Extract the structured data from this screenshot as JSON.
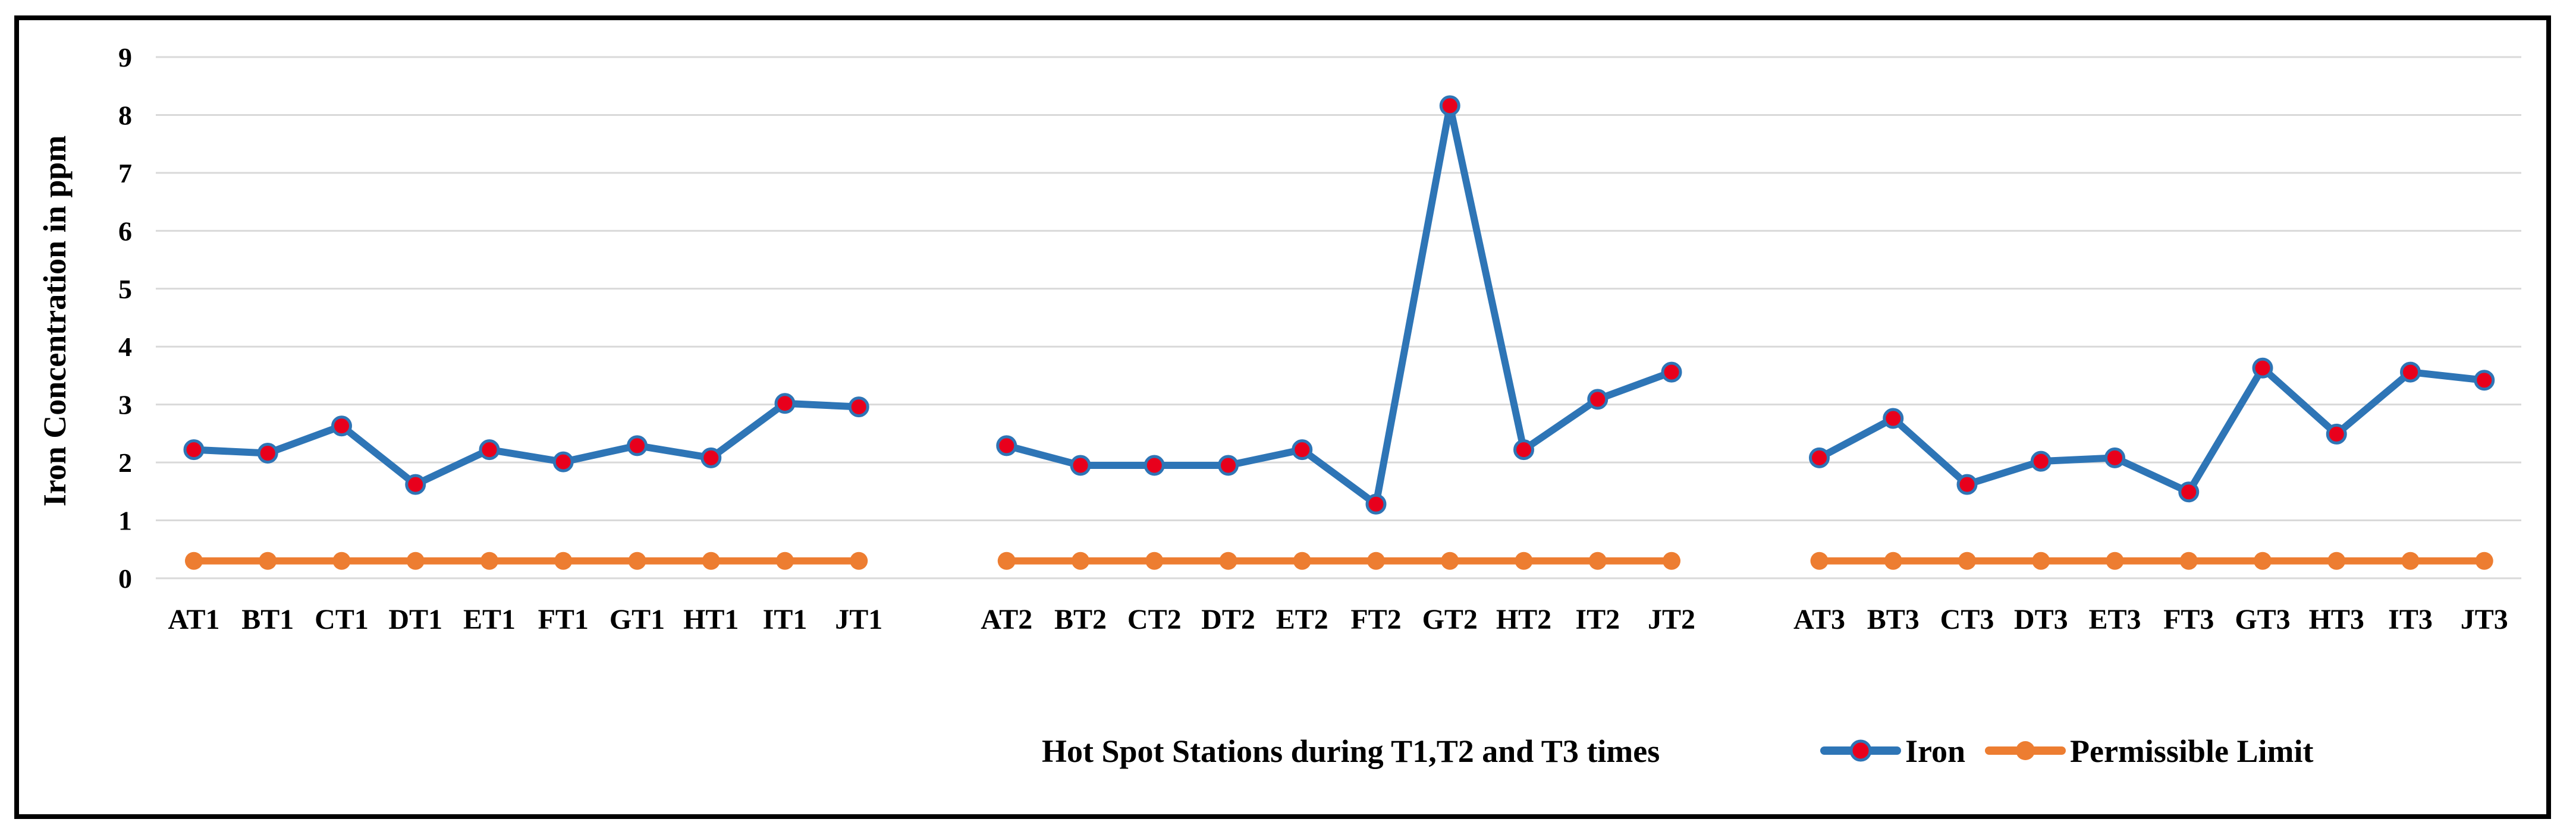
{
  "chart_data": {
    "type": "line",
    "xlabel": "Hot Spot Stations during T1,T2 and T3 times",
    "ylabel": "Iron Concentration in ppm",
    "ylim": [
      0,
      9
    ],
    "yticks": [
      "0",
      "1",
      "2",
      "3",
      "4",
      "5",
      "6",
      "7",
      "8",
      "9"
    ],
    "grid": "horizontal",
    "legend_position": "bottom-right",
    "groups": [
      {
        "categories": [
          "AT1",
          "BT1",
          "CT1",
          "DT1",
          "ET1",
          "FT1",
          "GT1",
          "HT1",
          "IT1",
          "JT1"
        ],
        "series": [
          {
            "name": "Iron",
            "values": [
              2.22,
              2.16,
              2.63,
              1.62,
              2.22,
              2.01,
              2.29,
              2.08,
              3.02,
              2.96
            ]
          },
          {
            "name": "Permissible Limit",
            "values": [
              0.3,
              0.3,
              0.3,
              0.3,
              0.3,
              0.3,
              0.3,
              0.3,
              0.3,
              0.3
            ]
          }
        ]
      },
      {
        "categories": [
          "AT2",
          "BT2",
          "CT2",
          "DT2",
          "ET2",
          "FT2",
          "GT2",
          "HT2",
          "IT2",
          "JT2"
        ],
        "series": [
          {
            "name": "Iron",
            "values": [
              2.29,
              1.95,
              1.95,
              1.95,
              2.22,
              1.28,
              8.16,
              2.22,
              3.09,
              3.56
            ]
          },
          {
            "name": "Permissible Limit",
            "values": [
              0.3,
              0.3,
              0.3,
              0.3,
              0.3,
              0.3,
              0.3,
              0.3,
              0.3,
              0.3
            ]
          }
        ]
      },
      {
        "categories": [
          "AT3",
          "BT3",
          "CT3",
          "DT3",
          "ET3",
          "FT3",
          "GT3",
          "HT3",
          "IT3",
          "JT3"
        ],
        "series": [
          {
            "name": "Iron",
            "values": [
              2.08,
              2.76,
              1.62,
              2.02,
              2.08,
              1.49,
              3.63,
              2.49,
              3.56,
              3.42
            ]
          },
          {
            "name": "Permissible Limit",
            "values": [
              0.3,
              0.3,
              0.3,
              0.3,
              0.3,
              0.3,
              0.3,
              0.3,
              0.3,
              0.3
            ]
          }
        ]
      }
    ],
    "legend": [
      {
        "name": "Iron",
        "line_color": "#2E75B6",
        "marker_color": "#E8001C"
      },
      {
        "name": "Permissible Limit",
        "line_color": "#ED7D31",
        "marker_color": "#ED7D31"
      }
    ],
    "colors": {
      "iron_line": "#2E75B6",
      "iron_marker": "#E8001C",
      "limit_line": "#ED7D31",
      "limit_marker": "#ED7D31",
      "gridline": "#D9D9D9",
      "frame": "#000000"
    }
  }
}
